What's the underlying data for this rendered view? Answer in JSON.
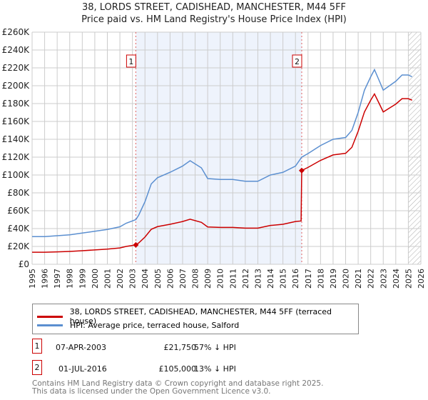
{
  "chart_data": {
    "type": "line",
    "title": "38, LORDS STREET, CADISHEAD, MANCHESTER, M44 5FF",
    "subtitle": "Price paid vs. HM Land Registry's House Price Index (HPI)",
    "xlim": [
      1995,
      2026
    ],
    "ylim": [
      0,
      260000
    ],
    "x_ticks": [
      "1995",
      "1996",
      "1997",
      "1998",
      "1999",
      "2000",
      "2001",
      "2002",
      "2003",
      "2004",
      "2005",
      "2006",
      "2007",
      "2008",
      "2009",
      "2010",
      "2011",
      "2012",
      "2013",
      "2014",
      "2015",
      "2016",
      "2017",
      "2018",
      "2019",
      "2020",
      "2021",
      "2022",
      "2023",
      "2024",
      "2025",
      "2026"
    ],
    "y_ticks": [
      "£0",
      "£20K",
      "£40K",
      "£60K",
      "£80K",
      "£100K",
      "£120K",
      "£140K",
      "£160K",
      "£180K",
      "£200K",
      "£220K",
      "£240K",
      "£260K"
    ],
    "series": [
      {
        "name": "38, LORDS STREET, CADISHEAD, MANCHESTER, M44 5FF (terraced house)",
        "color": "#cc0000",
        "x": [
          1995,
          1996,
          1997,
          1998,
          1999,
          2000,
          2001,
          2002,
          2002.5,
          2003.27,
          2003.5,
          2004,
          2004.5,
          2005,
          2006,
          2007,
          2007.6,
          2008.5,
          2009,
          2010,
          2011,
          2012,
          2013,
          2014,
          2015,
          2016,
          2016.45,
          2016.5,
          2017,
          2018,
          2019,
          2020,
          2020.5,
          2021,
          2021.5,
          2022,
          2022.3,
          2022.7,
          2023,
          2023.5,
          2024,
          2024.5,
          2025,
          2025.3
        ],
        "y": [
          13500,
          13500,
          13900,
          14400,
          15200,
          16100,
          17000,
          18300,
          20000,
          21750,
          23900,
          30500,
          39200,
          42200,
          44800,
          47900,
          50500,
          47000,
          41800,
          41300,
          41300,
          40500,
          40500,
          43500,
          44800,
          47900,
          48500,
          105000,
          108500,
          116400,
          122500,
          124300,
          131000,
          149000,
          170600,
          183800,
          190800,
          179400,
          170600,
          175000,
          179400,
          185500,
          185500,
          183800
        ]
      },
      {
        "name": "HPI: Average price, terraced house, Salford",
        "color": "#5b8fd0",
        "x": [
          1995,
          1996,
          1997,
          1998,
          1999,
          2000,
          2001,
          2002,
          2002.5,
          2003.27,
          2003.5,
          2004,
          2004.5,
          2005,
          2006,
          2007,
          2007.6,
          2008.5,
          2009,
          2010,
          2011,
          2012,
          2013,
          2014,
          2015,
          2016,
          2016.5,
          2017,
          2018,
          2019,
          2020,
          2020.5,
          2021,
          2021.5,
          2022,
          2022.3,
          2022.7,
          2023,
          2023.5,
          2024,
          2024.5,
          2025,
          2025.3
        ],
        "y": [
          31000,
          31000,
          32000,
          33000,
          35000,
          37000,
          39000,
          42000,
          46000,
          50000,
          55000,
          70000,
          90000,
          97000,
          103000,
          110000,
          116000,
          108000,
          96000,
          95000,
          95000,
          93000,
          93000,
          100000,
          103000,
          110000,
          120000,
          124000,
          133000,
          140000,
          142000,
          150000,
          170000,
          195000,
          210000,
          218000,
          205000,
          195000,
          200000,
          205000,
          212000,
          212000,
          210000
        ]
      }
    ],
    "sales": [
      {
        "label": "1",
        "x": 2003.27,
        "y": 21750
      },
      {
        "label": "2",
        "x": 2016.5,
        "y": 105000
      }
    ],
    "hatch_from": 2025.0
  },
  "table": [
    {
      "num": "1",
      "date": "07-APR-2003",
      "price": "£21,750",
      "delta": "57% ↓ HPI"
    },
    {
      "num": "2",
      "date": "01-JUL-2016",
      "price": "£105,000",
      "delta": "13% ↓ HPI"
    }
  ],
  "footer": [
    "Contains HM Land Registry data © Crown copyright and database right 2025.",
    "This data is licensed under the Open Government Licence v3.0."
  ]
}
